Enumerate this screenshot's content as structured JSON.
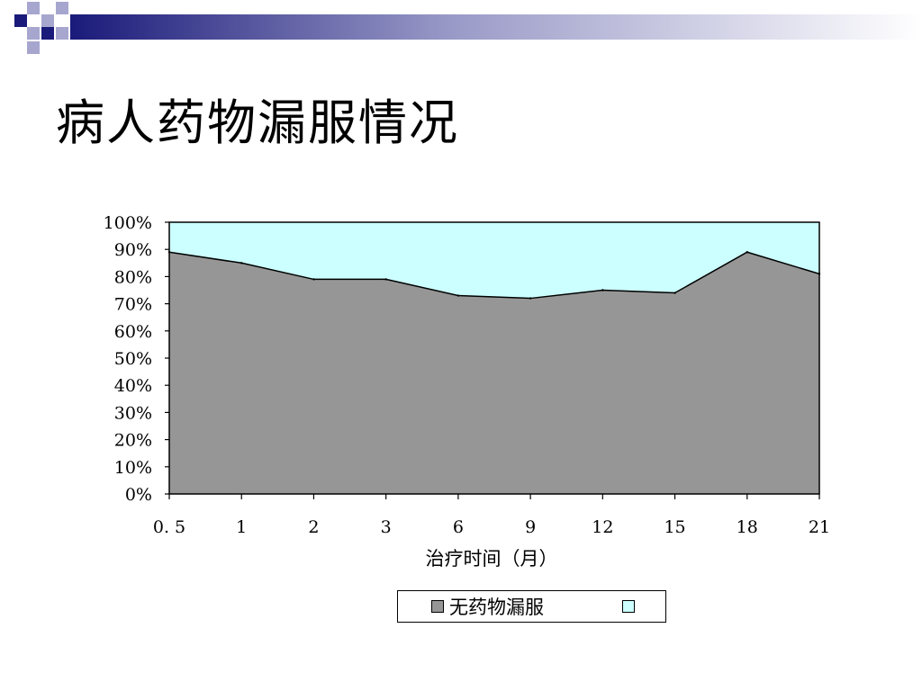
{
  "slide": {
    "title": "病人药物漏服情况"
  },
  "colors": {
    "deco_dark": "#1a1a7a",
    "deco_light": "#a6a6cf",
    "remainder": "#ccffff",
    "main_series": "#969696"
  },
  "chart_data": {
    "type": "area",
    "stacked_percent": true,
    "title": "",
    "xlabel": "治疗时间（月）",
    "ylabel": "",
    "x": [
      "0. 5",
      "1",
      "2",
      "3",
      "6",
      "9",
      "12",
      "15",
      "18",
      "21"
    ],
    "series": [
      {
        "name": "无药物漏服",
        "values": [
          89,
          85,
          79,
          79,
          73,
          72,
          75,
          74,
          89,
          81
        ],
        "color": "#969696"
      },
      {
        "name": "",
        "values": [
          11,
          15,
          21,
          21,
          27,
          28,
          25,
          26,
          11,
          19
        ],
        "color": "#ccffff"
      }
    ],
    "ylim": [
      0,
      100
    ],
    "yticks": [
      "0%",
      "10%",
      "20%",
      "30%",
      "40%",
      "50%",
      "60%",
      "70%",
      "80%",
      "90%",
      "100%"
    ],
    "grid": false,
    "legend": "bottom"
  }
}
